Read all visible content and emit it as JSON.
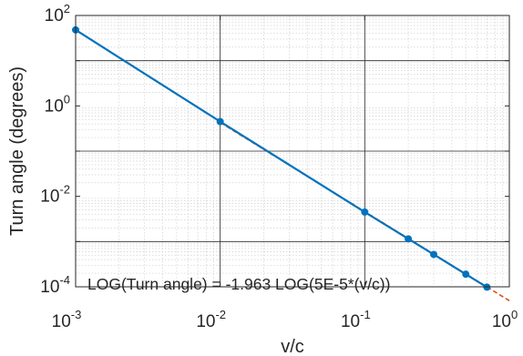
{
  "chart_data": {
    "type": "line",
    "xlabel": "v/c",
    "ylabel": "Turn angle (degrees)",
    "xscale": "log",
    "yscale": "log",
    "xlim": [
      0.001,
      1
    ],
    "ylim": [
      0.0001,
      100
    ],
    "grid": true,
    "minor_grid": true,
    "x_ticks": [
      {
        "base": "10",
        "exp": "-3"
      },
      {
        "base": "10",
        "exp": "-2"
      },
      {
        "base": "10",
        "exp": "-1"
      },
      {
        "base": "10",
        "exp": "0"
      }
    ],
    "y_ticks": [
      {
        "base": "10",
        "exp": "-4"
      },
      {
        "base": "10",
        "exp": "-2"
      },
      {
        "base": "10",
        "exp": "0"
      },
      {
        "base": "10",
        "exp": "2"
      }
    ],
    "annotation": "LOG(Turn angle) = -1.963 LOG(5E-5*(v/c))",
    "series": [
      {
        "style": "solid-with-markers",
        "color": "#0072BD",
        "x": [
          0.001,
          0.01,
          0.1,
          0.2,
          0.3,
          0.5,
          0.7
        ],
        "y": [
          48,
          0.45,
          0.0045,
          0.00115,
          0.00052,
          0.00019,
          9.8e-05
        ]
      },
      {
        "style": "dashed-fit",
        "color": "#D95319",
        "x": [
          0.01,
          1
        ],
        "y": [
          0.43,
          4.93e-05
        ]
      }
    ]
  }
}
